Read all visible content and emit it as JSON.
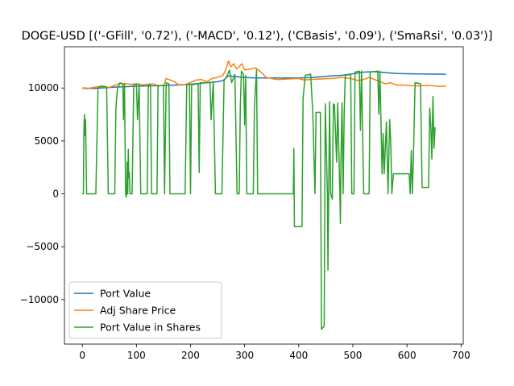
{
  "chart_data": {
    "type": "line",
    "title": "DOGE-USD [('-GFill', '0.72'), ('-MACD', '0.12'), ('CBasis', '0.09'), ('SmaRsi', '0.03')]",
    "xlabel": "",
    "ylabel": "",
    "xlim": [
      -33,
      704
    ],
    "ylim": [
      -14200,
      13900
    ],
    "xticks": [
      0,
      100,
      200,
      300,
      400,
      500,
      600,
      700
    ],
    "yticks": [
      -10000,
      -5000,
      0,
      5000,
      10000
    ],
    "grid": false,
    "legend_position": "lower-left",
    "series": [
      {
        "name": "Port Value",
        "color": "#1f77b4",
        "points": [
          [
            0,
            10000
          ],
          [
            20,
            9960
          ],
          [
            40,
            10020
          ],
          [
            60,
            10080
          ],
          [
            80,
            10120
          ],
          [
            100,
            10180
          ],
          [
            120,
            10200
          ],
          [
            140,
            10220
          ],
          [
            160,
            10250
          ],
          [
            180,
            10300
          ],
          [
            200,
            10350
          ],
          [
            220,
            10450
          ],
          [
            240,
            10550
          ],
          [
            250,
            10600
          ],
          [
            260,
            10700
          ],
          [
            270,
            11150
          ],
          [
            280,
            11100
          ],
          [
            300,
            11000
          ],
          [
            320,
            10950
          ],
          [
            340,
            10950
          ],
          [
            360,
            10950
          ],
          [
            380,
            10950
          ],
          [
            400,
            10950
          ],
          [
            420,
            10980
          ],
          [
            440,
            11050
          ],
          [
            460,
            11150
          ],
          [
            480,
            11200
          ],
          [
            500,
            11350
          ],
          [
            520,
            11500
          ],
          [
            540,
            11550
          ],
          [
            560,
            11450
          ],
          [
            580,
            11380
          ],
          [
            600,
            11350
          ],
          [
            620,
            11330
          ],
          [
            640,
            11320
          ],
          [
            660,
            11310
          ],
          [
            672,
            11300
          ]
        ]
      },
      {
        "name": "Adj Share Price",
        "color": "#ff7f0e",
        "points": [
          [
            0,
            9980
          ],
          [
            10,
            9940
          ],
          [
            20,
            10050
          ],
          [
            30,
            10150
          ],
          [
            40,
            10100
          ],
          [
            50,
            10050
          ],
          [
            60,
            10250
          ],
          [
            70,
            10450
          ],
          [
            80,
            10400
          ],
          [
            90,
            10350
          ],
          [
            100,
            10400
          ],
          [
            110,
            10300
          ],
          [
            120,
            10350
          ],
          [
            130,
            10400
          ],
          [
            140,
            10250
          ],
          [
            150,
            10200
          ],
          [
            155,
            10900
          ],
          [
            160,
            10800
          ],
          [
            170,
            10600
          ],
          [
            180,
            10250
          ],
          [
            190,
            10350
          ],
          [
            200,
            10500
          ],
          [
            210,
            10750
          ],
          [
            220,
            10800
          ],
          [
            230,
            10600
          ],
          [
            240,
            10900
          ],
          [
            250,
            11000
          ],
          [
            260,
            11200
          ],
          [
            265,
            11700
          ],
          [
            270,
            12550
          ],
          [
            275,
            12000
          ],
          [
            280,
            12300
          ],
          [
            285,
            11800
          ],
          [
            290,
            12000
          ],
          [
            295,
            12300
          ],
          [
            300,
            11700
          ],
          [
            310,
            11800
          ],
          [
            320,
            11900
          ],
          [
            330,
            11500
          ],
          [
            340,
            11000
          ],
          [
            360,
            10800
          ],
          [
            380,
            10850
          ],
          [
            400,
            10900
          ],
          [
            410,
            10750
          ],
          [
            420,
            10800
          ],
          [
            440,
            10850
          ],
          [
            460,
            10900
          ],
          [
            480,
            11000
          ],
          [
            500,
            10850
          ],
          [
            510,
            10700
          ],
          [
            520,
            10800
          ],
          [
            530,
            11000
          ],
          [
            540,
            10800
          ],
          [
            550,
            10600
          ],
          [
            560,
            10400
          ],
          [
            570,
            10500
          ],
          [
            580,
            10300
          ],
          [
            600,
            10250
          ],
          [
            620,
            10200
          ],
          [
            640,
            10250
          ],
          [
            660,
            10150
          ],
          [
            672,
            10180
          ]
        ]
      },
      {
        "name": "Port Value in Shares",
        "color": "#2ca02c",
        "points": [
          [
            0,
            0
          ],
          [
            2,
            0
          ],
          [
            3,
            6000
          ],
          [
            4,
            7500
          ],
          [
            5,
            5500
          ],
          [
            6,
            7000
          ],
          [
            8,
            0
          ],
          [
            25,
            0
          ],
          [
            29,
            10000
          ],
          [
            35,
            10200
          ],
          [
            45,
            10100
          ],
          [
            48,
            0
          ],
          [
            60,
            0
          ],
          [
            62,
            8000
          ],
          [
            65,
            10000
          ],
          [
            70,
            10500
          ],
          [
            75,
            10300
          ],
          [
            76,
            7000
          ],
          [
            78,
            10400
          ],
          [
            80,
            0
          ],
          [
            81,
            -300
          ],
          [
            82,
            0
          ],
          [
            83,
            3000
          ],
          [
            84,
            0
          ],
          [
            85,
            4200
          ],
          [
            86,
            1500
          ],
          [
            87,
            2000
          ],
          [
            88,
            0
          ],
          [
            92,
            0
          ],
          [
            95,
            10300
          ],
          [
            100,
            10400
          ],
          [
            102,
            7000
          ],
          [
            105,
            10400
          ],
          [
            108,
            0
          ],
          [
            120,
            0
          ],
          [
            122,
            10300
          ],
          [
            126,
            10300
          ],
          [
            128,
            0
          ],
          [
            138,
            0
          ],
          [
            140,
            10200
          ],
          [
            150,
            10250
          ],
          [
            152,
            0
          ],
          [
            155,
            10500
          ],
          [
            160,
            10400
          ],
          [
            162,
            0
          ],
          [
            190,
            0
          ],
          [
            193,
            10300
          ],
          [
            198,
            10400
          ],
          [
            200,
            0
          ],
          [
            202,
            10300
          ],
          [
            214,
            10400
          ],
          [
            216,
            2000
          ],
          [
            218,
            10500
          ],
          [
            236,
            10500
          ],
          [
            238,
            7000
          ],
          [
            242,
            10600
          ],
          [
            246,
            0
          ],
          [
            258,
            0
          ],
          [
            262,
            10700
          ],
          [
            268,
            11200
          ],
          [
            272,
            11700
          ],
          [
            276,
            10500
          ],
          [
            282,
            11300
          ],
          [
            286,
            0
          ],
          [
            290,
            0
          ],
          [
            292,
            8300
          ],
          [
            294,
            11600
          ],
          [
            298,
            11300
          ],
          [
            300,
            6500
          ],
          [
            302,
            11200
          ],
          [
            304,
            0
          ],
          [
            316,
            0
          ],
          [
            318,
            8000
          ],
          [
            320,
            10000
          ],
          [
            322,
            11700
          ],
          [
            324,
            0
          ],
          [
            390,
            0
          ],
          [
            391,
            4300
          ],
          [
            392,
            -3100
          ],
          [
            406,
            -3100
          ],
          [
            408,
            9000
          ],
          [
            412,
            11200
          ],
          [
            422,
            11300
          ],
          [
            426,
            7600
          ],
          [
            430,
            0
          ],
          [
            432,
            7700
          ],
          [
            440,
            7700
          ],
          [
            442,
            -12800
          ],
          [
            447,
            -12500
          ],
          [
            449,
            8500
          ],
          [
            453,
            0
          ],
          [
            454,
            -7200
          ],
          [
            457,
            8700
          ],
          [
            459,
            0
          ],
          [
            462,
            -500
          ],
          [
            464,
            8500
          ],
          [
            466,
            8400
          ],
          [
            470,
            3000
          ],
          [
            472,
            8600
          ],
          [
            476,
            0
          ],
          [
            477,
            -2800
          ],
          [
            478,
            3000
          ],
          [
            480,
            8600
          ],
          [
            482,
            0
          ],
          [
            484,
            7700
          ],
          [
            486,
            11200
          ],
          [
            496,
            11300
          ],
          [
            498,
            0
          ],
          [
            502,
            0
          ],
          [
            504,
            11500
          ],
          [
            512,
            11600
          ],
          [
            514,
            6000
          ],
          [
            516,
            11600
          ],
          [
            520,
            0
          ],
          [
            530,
            0
          ],
          [
            532,
            11500
          ],
          [
            546,
            11600
          ],
          [
            548,
            7500
          ],
          [
            550,
            11600
          ],
          [
            554,
            1900
          ],
          [
            556,
            5700
          ],
          [
            558,
            1900
          ],
          [
            562,
            6800
          ],
          [
            565,
            0
          ],
          [
            568,
            7000
          ],
          [
            570,
            5000
          ],
          [
            572,
            0
          ],
          [
            575,
            1900
          ],
          [
            582,
            1900
          ],
          [
            604,
            1900
          ],
          [
            606,
            0
          ],
          [
            608,
            4100
          ],
          [
            610,
            0
          ],
          [
            612,
            3600
          ],
          [
            615,
            10500
          ],
          [
            625,
            10400
          ],
          [
            628,
            600
          ],
          [
            640,
            600
          ],
          [
            642,
            8100
          ],
          [
            644,
            6500
          ],
          [
            646,
            3300
          ],
          [
            648,
            9200
          ],
          [
            650,
            4300
          ],
          [
            652,
            6300
          ]
        ]
      }
    ]
  }
}
